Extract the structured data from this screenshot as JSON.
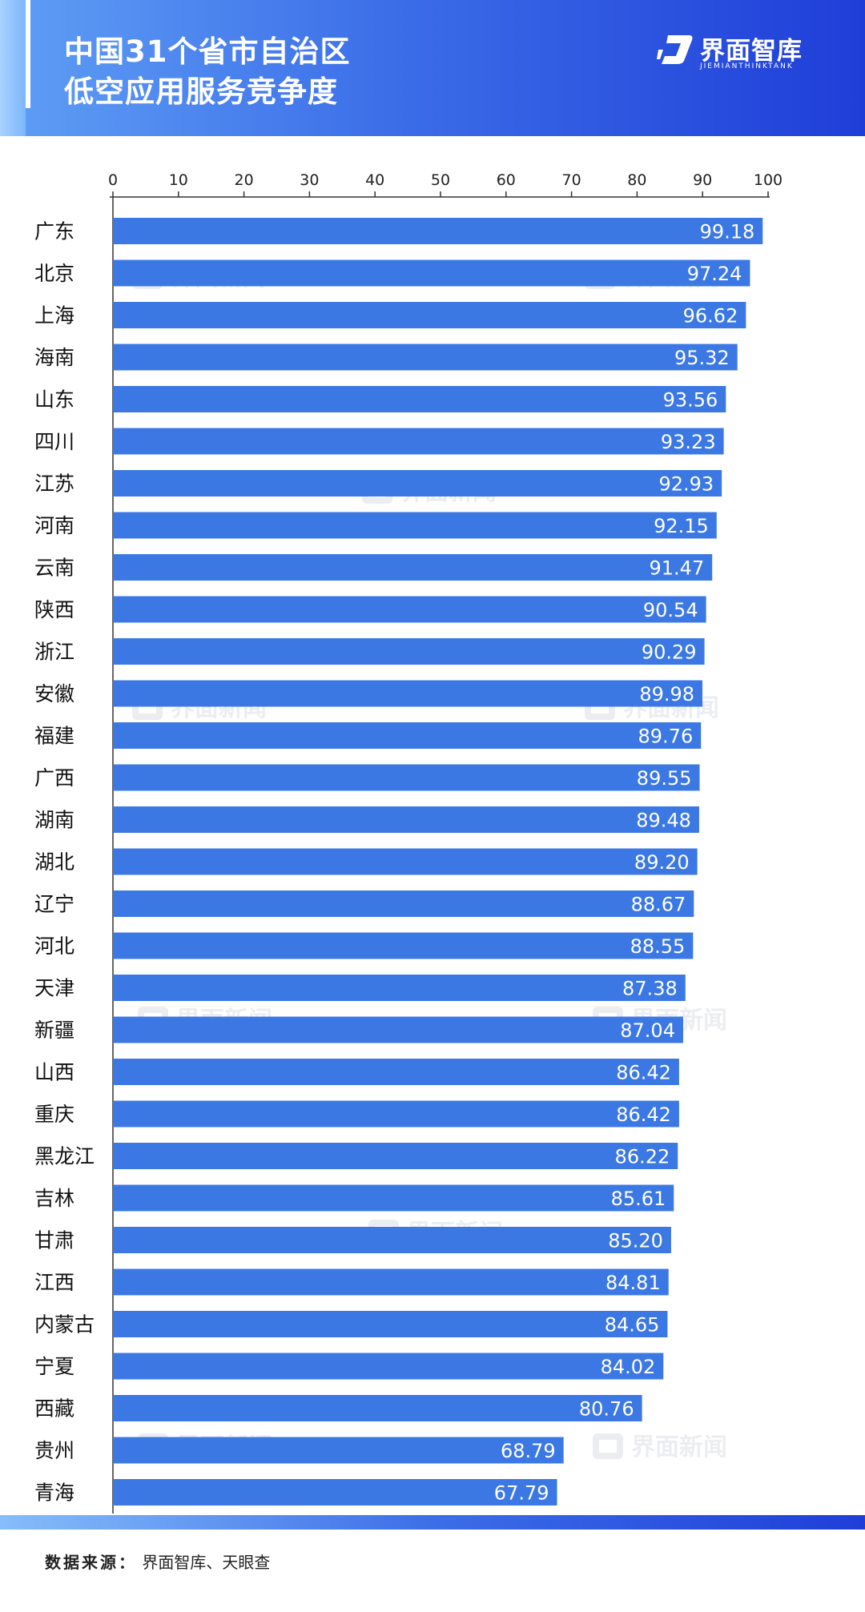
{
  "header": {
    "title_line1": "中国31个省市自治区",
    "title_line2": "低空应用服务竞争度",
    "logo_text": "界面智库",
    "logo_sub": "JIEMIANTHINKTANK"
  },
  "watermark_text": "界面新闻",
  "footer": {
    "source_label": "数据来源：",
    "source_value": "界面智库、天眼查"
  },
  "colors": {
    "bar": "#3c78e4",
    "header_start": "#5f9ff5",
    "header_end": "#1f3ed8"
  },
  "chart_data": {
    "type": "bar",
    "orientation": "horizontal",
    "xlim": [
      0,
      100
    ],
    "x_ticks": [
      0,
      10,
      20,
      30,
      40,
      50,
      60,
      70,
      80,
      90,
      100
    ],
    "axis_position": "top",
    "grid": false,
    "data_labels": true,
    "categories": [
      "广东",
      "北京",
      "上海",
      "海南",
      "山东",
      "四川",
      "江苏",
      "河南",
      "云南",
      "陕西",
      "浙江",
      "安徽",
      "福建",
      "广西",
      "湖南",
      "湖北",
      "辽宁",
      "河北",
      "天津",
      "新疆",
      "山西",
      "重庆",
      "黑龙江",
      "吉林",
      "甘肃",
      "江西",
      "内蒙古",
      "宁夏",
      "西藏",
      "贵州",
      "青海"
    ],
    "values": [
      99.18,
      97.24,
      96.62,
      95.32,
      93.56,
      93.23,
      92.93,
      92.15,
      91.47,
      90.54,
      90.29,
      89.98,
      89.76,
      89.55,
      89.48,
      89.2,
      88.67,
      88.55,
      87.38,
      87.04,
      86.42,
      86.42,
      86.22,
      85.61,
      85.2,
      84.81,
      84.65,
      84.02,
      80.76,
      68.79,
      67.79
    ],
    "value_labels": [
      "99.18",
      "97.24",
      "96.62",
      "95.32",
      "93.56",
      "93.23",
      "92.93",
      "92.15",
      "91.47",
      "90.54",
      "90.29",
      "89.98",
      "89.76",
      "89.55",
      "89.48",
      "89.20",
      "88.67",
      "88.55",
      "87.38",
      "87.04",
      "86.42",
      "86.42",
      "86.22",
      "85.61",
      "85.20",
      "84.81",
      "84.65",
      "84.02",
      "80.76",
      "68.79",
      "67.79"
    ]
  }
}
